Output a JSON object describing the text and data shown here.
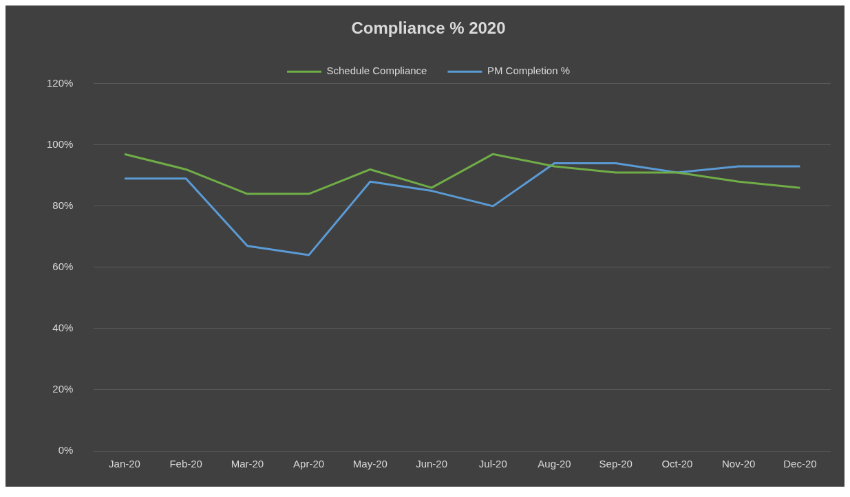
{
  "chart_data": {
    "type": "line",
    "title": "Compliance % 2020",
    "categories": [
      "Jan-20",
      "Feb-20",
      "Mar-20",
      "Apr-20",
      "May-20",
      "Jun-20",
      "Jul-20",
      "Aug-20",
      "Sep-20",
      "Oct-20",
      "Nov-20",
      "Dec-20"
    ],
    "series": [
      {
        "name": "Schedule Compliance",
        "color": "#70ad47",
        "values": [
          97,
          92,
          84,
          84,
          92,
          86,
          97,
          93,
          91,
          91,
          88,
          86
        ]
      },
      {
        "name": "PM Completion %",
        "color": "#5b9bd5",
        "values": [
          89,
          89,
          67,
          64,
          88,
          85,
          80,
          94,
          94,
          91,
          93,
          93
        ]
      }
    ],
    "ylim": [
      0,
      120
    ],
    "yticks": [
      {
        "value": 0,
        "label": "0%"
      },
      {
        "value": 20,
        "label": "20%"
      },
      {
        "value": 40,
        "label": "40%"
      },
      {
        "value": 60,
        "label": "60%"
      },
      {
        "value": 80,
        "label": "80%"
      },
      {
        "value": 100,
        "label": "100%"
      },
      {
        "value": 120,
        "label": "120%"
      }
    ],
    "grid": "y",
    "legend": "top",
    "marker": "none",
    "line_style": "solid"
  }
}
